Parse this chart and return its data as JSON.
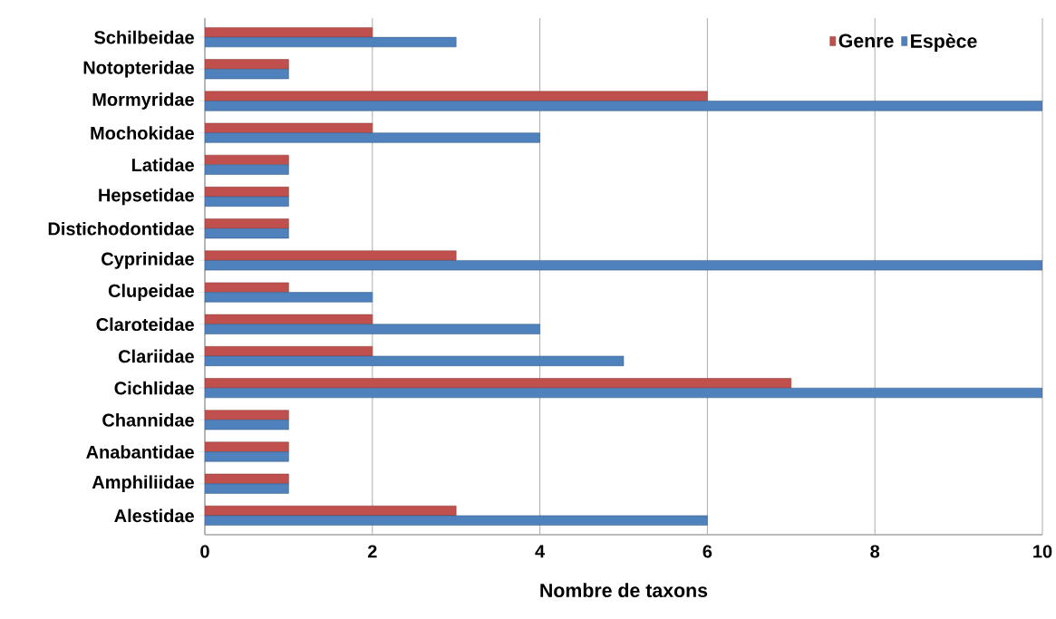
{
  "chart_data": {
    "type": "bar",
    "orientation": "horizontal",
    "xlabel": "Nombre de taxons",
    "categories": [
      "Schilbeidae",
      "Notopteridae",
      "Mormyridae",
      "Mochokidae",
      "Latidae",
      "Hepsetidae",
      "Distichodontidae",
      "Cyprinidae",
      "Clupeidae",
      "Claroteidae",
      "Clariidae",
      "Cichlidae",
      "Channidae",
      "Anabantidae",
      "Amphiliidae",
      "Alestidae"
    ],
    "series": [
      {
        "name": "Genre",
        "color": "#c0504d",
        "values": [
          2,
          1,
          6,
          2,
          1,
          1,
          1,
          3,
          1,
          2,
          2,
          7,
          1,
          1,
          1,
          3
        ]
      },
      {
        "name": "Espèce",
        "color": "#4f81bd",
        "values": [
          3,
          1,
          10,
          4,
          1,
          1,
          1,
          10,
          2,
          4,
          5,
          10,
          1,
          1,
          1,
          6
        ]
      }
    ],
    "xlim": [
      0,
      10
    ],
    "xticks": [
      0,
      2,
      4,
      6,
      8,
      10
    ],
    "grid": "x",
    "legend": "top right"
  }
}
